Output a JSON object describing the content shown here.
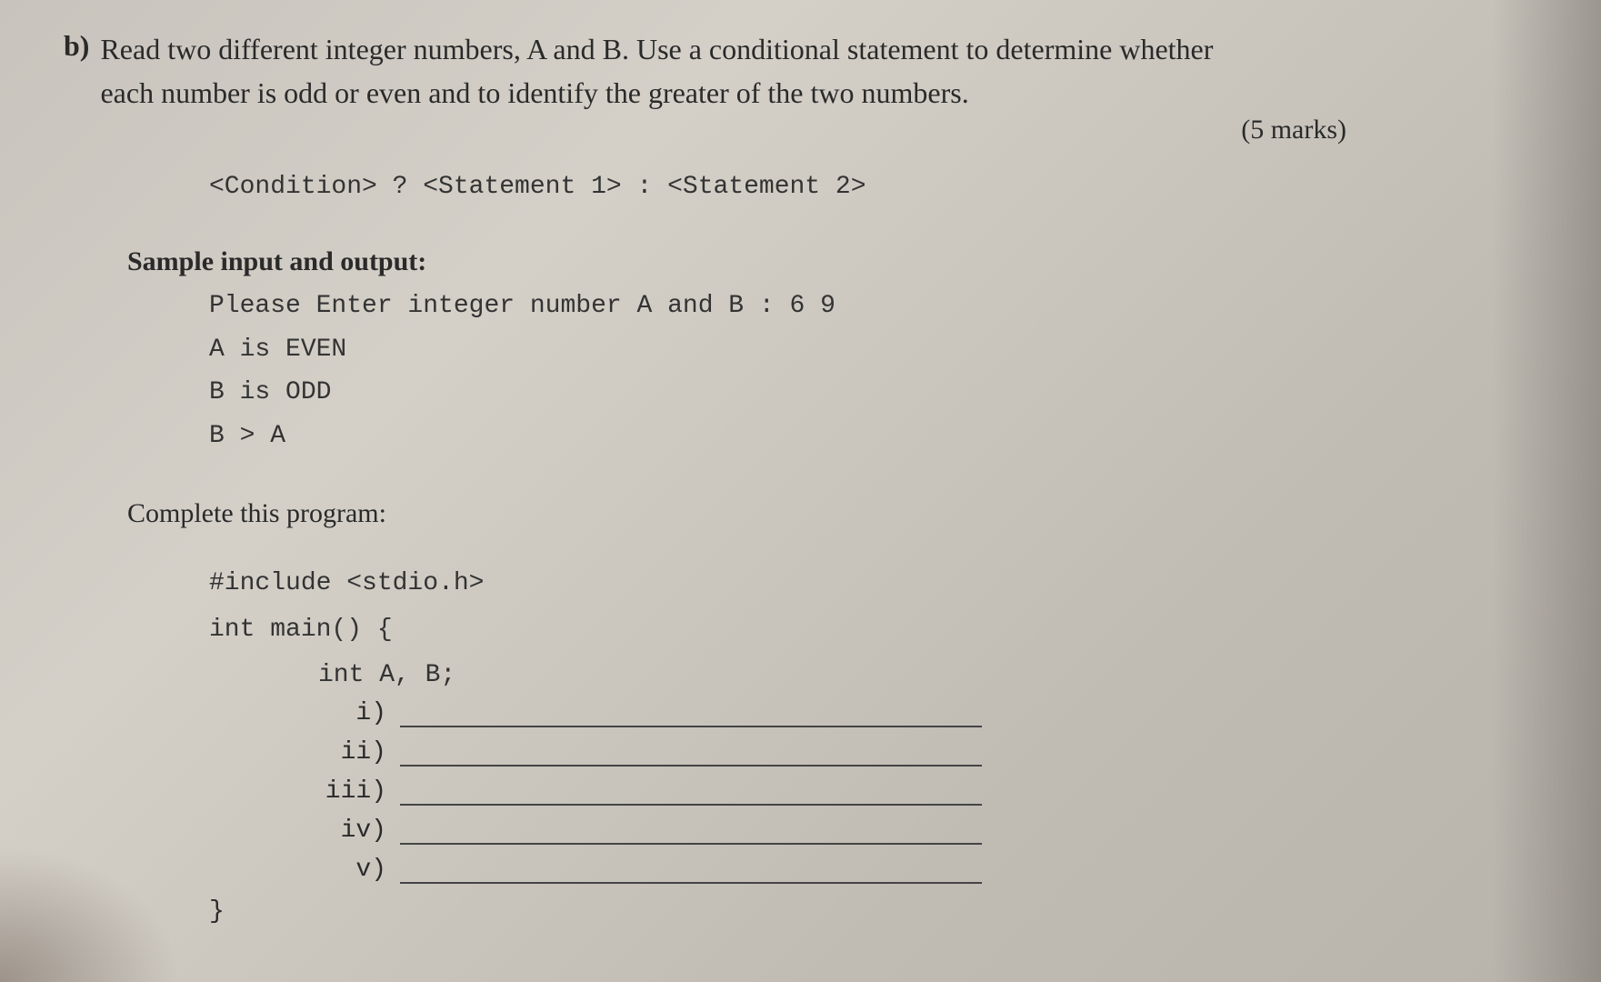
{
  "question": {
    "label": "b)",
    "text_line1": "Read two different integer numbers, A and B. Use a conditional statement to determine whether",
    "text_line2": "each number is odd or even and to identify the greater of the two numbers.",
    "marks": "(5 marks)"
  },
  "syntax": "<Condition> ? <Statement 1> : <Statement 2>",
  "sample": {
    "title": "Sample input and output:",
    "lines": [
      "Please Enter integer number A and B : 6 9",
      "A is EVEN",
      "B is ODD",
      "B > A"
    ]
  },
  "complete_title": "Complete this program:",
  "code": {
    "include": "#include <stdio.h>",
    "main_open": "int main() {",
    "decl": "int A, B;",
    "blanks": [
      "i)",
      "ii)",
      "iii)",
      "iv)",
      "v)"
    ],
    "close": "}"
  },
  "style": {
    "font_body": "Times New Roman",
    "font_mono": "Courier New",
    "fontsize_body": 32,
    "fontsize_mono": 28,
    "fontsize_title": 30,
    "blank_line_width": 640,
    "blank_line_color": "#444444",
    "text_color": "#2a2a2a",
    "background_gradient": [
      "#c8c4bd",
      "#d4d0c8",
      "#c0bcb4",
      "#b8b4ac"
    ]
  }
}
